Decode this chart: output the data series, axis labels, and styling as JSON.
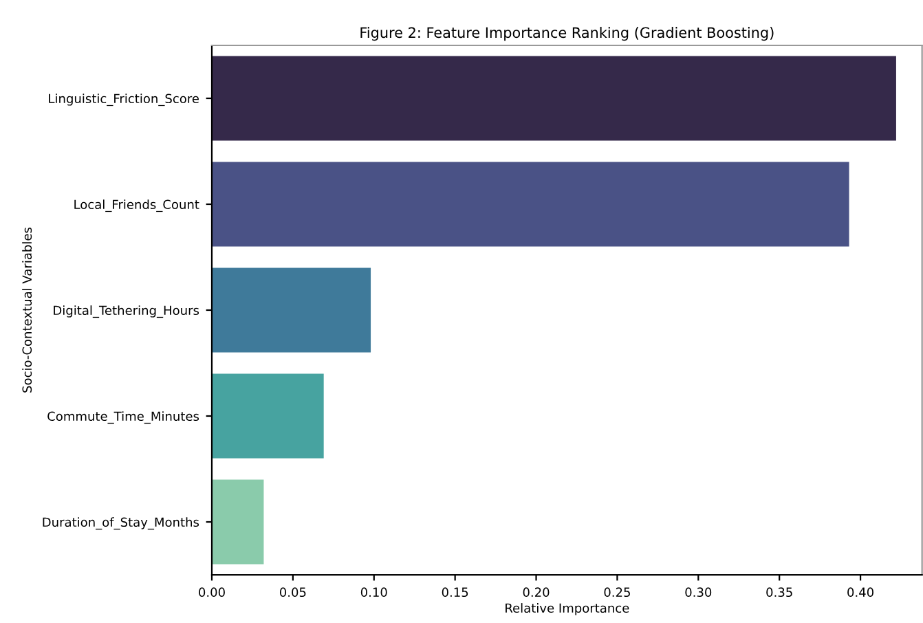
{
  "chart_data": {
    "type": "bar",
    "orientation": "horizontal",
    "title": "Figure 2: Feature Importance Ranking (Gradient Boosting)",
    "xlabel": "Relative Importance",
    "ylabel": "Socio-Contextual Variables",
    "categories": [
      "Linguistic_Friction_Score",
      "Local_Friends_Count",
      "Digital_Tethering_Hours",
      "Commute_Time_Minutes",
      "Duration_of_Stay_Months"
    ],
    "values": [
      0.422,
      0.393,
      0.098,
      0.069,
      0.032
    ],
    "colors": [
      "#35294a",
      "#4a5286",
      "#3f7a9a",
      "#47a3a0",
      "#8acbab"
    ],
    "xlim": [
      0,
      0.438
    ],
    "xticks": [
      {
        "value": 0,
        "label": "0.00"
      },
      {
        "value": 0.05,
        "label": "0.05"
      },
      {
        "value": 0.1,
        "label": "0.10"
      },
      {
        "value": 0.15,
        "label": "0.15"
      },
      {
        "value": 0.2,
        "label": "0.20"
      },
      {
        "value": 0.25,
        "label": "0.25"
      },
      {
        "value": 0.3,
        "label": "0.30"
      },
      {
        "value": 0.35,
        "label": "0.35"
      },
      {
        "value": 0.4,
        "label": "0.40"
      }
    ],
    "grid": false
  }
}
